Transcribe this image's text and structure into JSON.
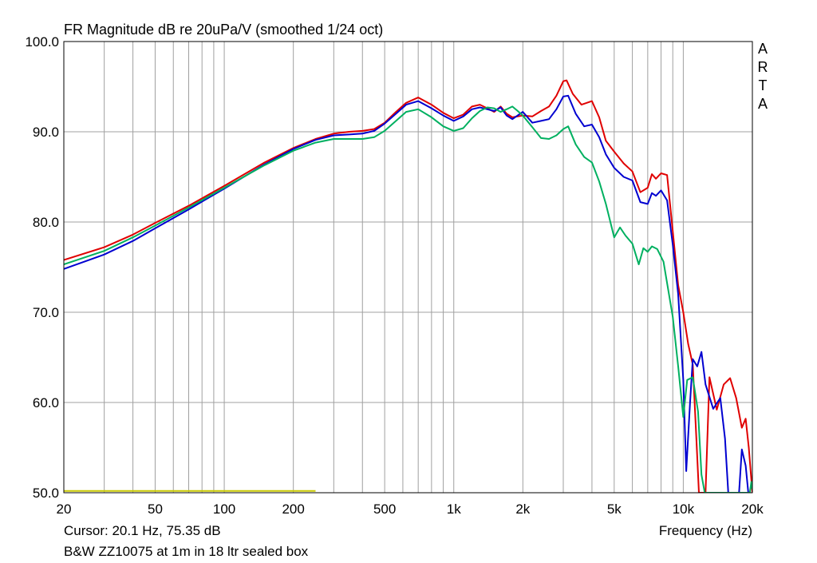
{
  "chart_data": {
    "type": "line",
    "title": "FR Magnitude dB re 20uPa/V (smoothed 1/24 oct)",
    "xlabel": "Frequency (Hz)",
    "ylabel": "",
    "xscale": "log",
    "xlim": [
      20,
      20000
    ],
    "ylim": [
      50.0,
      100.0
    ],
    "grid": true,
    "x_ticks": [
      {
        "value": 20,
        "label": "20"
      },
      {
        "value": 50,
        "label": "50"
      },
      {
        "value": 100,
        "label": "100"
      },
      {
        "value": 200,
        "label": "200"
      },
      {
        "value": 500,
        "label": "500"
      },
      {
        "value": 1000,
        "label": "1k"
      },
      {
        "value": 2000,
        "label": "2k"
      },
      {
        "value": 5000,
        "label": "5k"
      },
      {
        "value": 10000,
        "label": "10k"
      },
      {
        "value": 20000,
        "label": "20k"
      }
    ],
    "y_ticks": [
      {
        "value": 100.0,
        "label": "100.0"
      },
      {
        "value": 90.0,
        "label": "90.0"
      },
      {
        "value": 80.0,
        "label": "80.0"
      },
      {
        "value": 70.0,
        "label": "70.0"
      },
      {
        "value": 60.0,
        "label": "60.0"
      },
      {
        "value": 50.0,
        "label": "50.0"
      }
    ],
    "series": [
      {
        "color": "#e00000",
        "points": [
          [
            20,
            75.8
          ],
          [
            30,
            77.2
          ],
          [
            40,
            78.6
          ],
          [
            50,
            79.9
          ],
          [
            70,
            81.8
          ],
          [
            100,
            84.0
          ],
          [
            150,
            86.6
          ],
          [
            200,
            88.2
          ],
          [
            250,
            89.2
          ],
          [
            300,
            89.8
          ],
          [
            350,
            90.0
          ],
          [
            400,
            90.1
          ],
          [
            450,
            90.3
          ],
          [
            500,
            91.0
          ],
          [
            560,
            92.2
          ],
          [
            620,
            93.2
          ],
          [
            700,
            93.8
          ],
          [
            800,
            93.0
          ],
          [
            900,
            92.1
          ],
          [
            1000,
            91.5
          ],
          [
            1100,
            91.9
          ],
          [
            1200,
            92.8
          ],
          [
            1300,
            93.0
          ],
          [
            1400,
            92.6
          ],
          [
            1500,
            92.2
          ],
          [
            1600,
            92.8
          ],
          [
            1700,
            92.0
          ],
          [
            1800,
            91.6
          ],
          [
            2000,
            91.8
          ],
          [
            2200,
            91.7
          ],
          [
            2400,
            92.3
          ],
          [
            2600,
            92.8
          ],
          [
            2800,
            94.0
          ],
          [
            3000,
            95.6
          ],
          [
            3100,
            95.7
          ],
          [
            3300,
            94.2
          ],
          [
            3600,
            93.0
          ],
          [
            4000,
            93.4
          ],
          [
            4300,
            91.6
          ],
          [
            4600,
            89.0
          ],
          [
            5000,
            87.8
          ],
          [
            5500,
            86.5
          ],
          [
            6000,
            85.6
          ],
          [
            6500,
            83.3
          ],
          [
            7000,
            83.8
          ],
          [
            7300,
            85.3
          ],
          [
            7600,
            84.8
          ],
          [
            8000,
            85.4
          ],
          [
            8500,
            85.2
          ],
          [
            9000,
            79.0
          ],
          [
            9500,
            73.0
          ],
          [
            10000,
            70.0
          ],
          [
            10500,
            66.5
          ],
          [
            11000,
            64.2
          ],
          [
            11400,
            56.0
          ],
          [
            11700,
            50.0
          ],
          [
            12500,
            50.0
          ],
          [
            13000,
            62.8
          ],
          [
            14000,
            59.2
          ],
          [
            15000,
            62.0
          ],
          [
            16000,
            62.7
          ],
          [
            17000,
            60.5
          ],
          [
            18000,
            57.2
          ],
          [
            18700,
            58.2
          ],
          [
            19300,
            55.0
          ],
          [
            20000,
            50.0
          ]
        ]
      },
      {
        "color": "#0000d0",
        "points": [
          [
            20,
            74.8
          ],
          [
            30,
            76.4
          ],
          [
            40,
            77.9
          ],
          [
            50,
            79.3
          ],
          [
            70,
            81.4
          ],
          [
            100,
            83.7
          ],
          [
            150,
            86.4
          ],
          [
            200,
            88.1
          ],
          [
            250,
            89.1
          ],
          [
            300,
            89.6
          ],
          [
            350,
            89.7
          ],
          [
            400,
            89.8
          ],
          [
            450,
            90.1
          ],
          [
            500,
            90.9
          ],
          [
            560,
            92.0
          ],
          [
            620,
            93.0
          ],
          [
            700,
            93.4
          ],
          [
            800,
            92.6
          ],
          [
            900,
            91.8
          ],
          [
            1000,
            91.2
          ],
          [
            1100,
            91.7
          ],
          [
            1200,
            92.5
          ],
          [
            1300,
            92.7
          ],
          [
            1400,
            92.5
          ],
          [
            1500,
            92.3
          ],
          [
            1600,
            92.7
          ],
          [
            1700,
            91.8
          ],
          [
            1800,
            91.4
          ],
          [
            2000,
            92.2
          ],
          [
            2200,
            91.0
          ],
          [
            2400,
            91.2
          ],
          [
            2600,
            91.4
          ],
          [
            2800,
            92.5
          ],
          [
            3000,
            93.9
          ],
          [
            3150,
            94.0
          ],
          [
            3400,
            92.0
          ],
          [
            3700,
            90.6
          ],
          [
            4000,
            90.8
          ],
          [
            4300,
            89.4
          ],
          [
            4600,
            87.5
          ],
          [
            5000,
            86.0
          ],
          [
            5500,
            85.0
          ],
          [
            6000,
            84.6
          ],
          [
            6500,
            82.2
          ],
          [
            7000,
            82.0
          ],
          [
            7300,
            83.2
          ],
          [
            7600,
            82.9
          ],
          [
            8000,
            83.5
          ],
          [
            8500,
            82.4
          ],
          [
            9000,
            77.5
          ],
          [
            9500,
            72.0
          ],
          [
            10000,
            62.5
          ],
          [
            10300,
            52.4
          ],
          [
            10700,
            60.0
          ],
          [
            11000,
            64.8
          ],
          [
            11500,
            64.0
          ],
          [
            12000,
            65.6
          ],
          [
            12500,
            62.0
          ],
          [
            13500,
            59.3
          ],
          [
            14500,
            60.5
          ],
          [
            15200,
            56.0
          ],
          [
            15700,
            50.0
          ],
          [
            17500,
            50.0
          ],
          [
            18000,
            54.8
          ],
          [
            18700,
            53.0
          ],
          [
            19200,
            50.0
          ]
        ]
      },
      {
        "color": "#00b060",
        "points": [
          [
            20,
            75.3
          ],
          [
            30,
            76.8
          ],
          [
            40,
            78.3
          ],
          [
            50,
            79.6
          ],
          [
            70,
            81.6
          ],
          [
            100,
            83.8
          ],
          [
            150,
            86.3
          ],
          [
            200,
            87.9
          ],
          [
            250,
            88.8
          ],
          [
            300,
            89.2
          ],
          [
            350,
            89.2
          ],
          [
            400,
            89.2
          ],
          [
            450,
            89.4
          ],
          [
            500,
            90.1
          ],
          [
            560,
            91.2
          ],
          [
            620,
            92.2
          ],
          [
            700,
            92.5
          ],
          [
            800,
            91.6
          ],
          [
            900,
            90.6
          ],
          [
            1000,
            90.1
          ],
          [
            1100,
            90.4
          ],
          [
            1200,
            91.5
          ],
          [
            1300,
            92.3
          ],
          [
            1400,
            92.7
          ],
          [
            1500,
            92.6
          ],
          [
            1600,
            92.2
          ],
          [
            1700,
            92.5
          ],
          [
            1800,
            92.8
          ],
          [
            1900,
            92.3
          ],
          [
            2000,
            91.8
          ],
          [
            2200,
            90.5
          ],
          [
            2400,
            89.3
          ],
          [
            2600,
            89.2
          ],
          [
            2800,
            89.6
          ],
          [
            3000,
            90.3
          ],
          [
            3150,
            90.6
          ],
          [
            3400,
            88.6
          ],
          [
            3700,
            87.2
          ],
          [
            4000,
            86.6
          ],
          [
            4300,
            84.5
          ],
          [
            4600,
            82.0
          ],
          [
            5000,
            78.3
          ],
          [
            5300,
            79.4
          ],
          [
            5600,
            78.5
          ],
          [
            6000,
            77.6
          ],
          [
            6400,
            75.3
          ],
          [
            6700,
            77.1
          ],
          [
            7000,
            76.7
          ],
          [
            7300,
            77.3
          ],
          [
            7700,
            77.0
          ],
          [
            8200,
            75.6
          ],
          [
            9000,
            69.5
          ],
          [
            9500,
            64.0
          ],
          [
            10000,
            58.4
          ],
          [
            10400,
            62.5
          ],
          [
            11000,
            62.8
          ],
          [
            11600,
            59.0
          ],
          [
            12000,
            52.0
          ],
          [
            12400,
            50.0
          ],
          [
            19500,
            50.0
          ],
          [
            19800,
            51.2
          ],
          [
            20000,
            50.4
          ]
        ]
      },
      {
        "color": "#c8c800",
        "points": [
          [
            20,
            50.2
          ],
          [
            250,
            50.2
          ]
        ]
      }
    ]
  },
  "watermark": [
    "A",
    "R",
    "T",
    "A"
  ],
  "cursor_readout": "Cursor: 20.1 Hz, 75.35 dB",
  "caption": "B&W ZZ10075 at 1m in 18 ltr sealed box",
  "colors": {
    "background": "#ffffff",
    "grid": "#a0a0a0",
    "frame": "#000000"
  }
}
